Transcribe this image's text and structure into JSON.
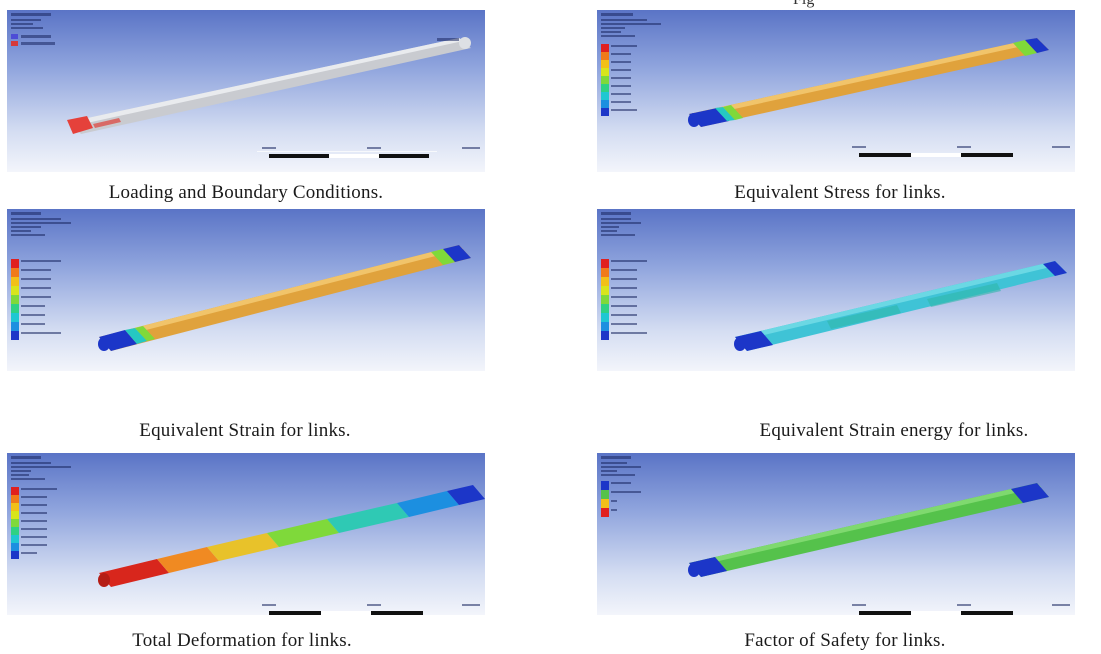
{
  "top_text": "Fig",
  "panels": [
    {
      "caption": "Loading and Boundary Conditions."
    },
    {
      "caption": "Equivalent Stress for links."
    },
    {
      "caption": "Equivalent Strain for links."
    },
    {
      "caption": "Equivalent Strain energy for links."
    },
    {
      "caption": "Total Deformation for links."
    },
    {
      "caption": "Factor of Safety for links."
    }
  ],
  "colors": {
    "background_top": "#5a74c6",
    "background_bottom": "#f3f5fb",
    "stress_orange": "#e0a23c",
    "strain_energy_cyan": "#3fc3d6",
    "fos_green": "#55c24b",
    "end_blue": "#1c36c8",
    "deformation_red": "#d8261c"
  }
}
